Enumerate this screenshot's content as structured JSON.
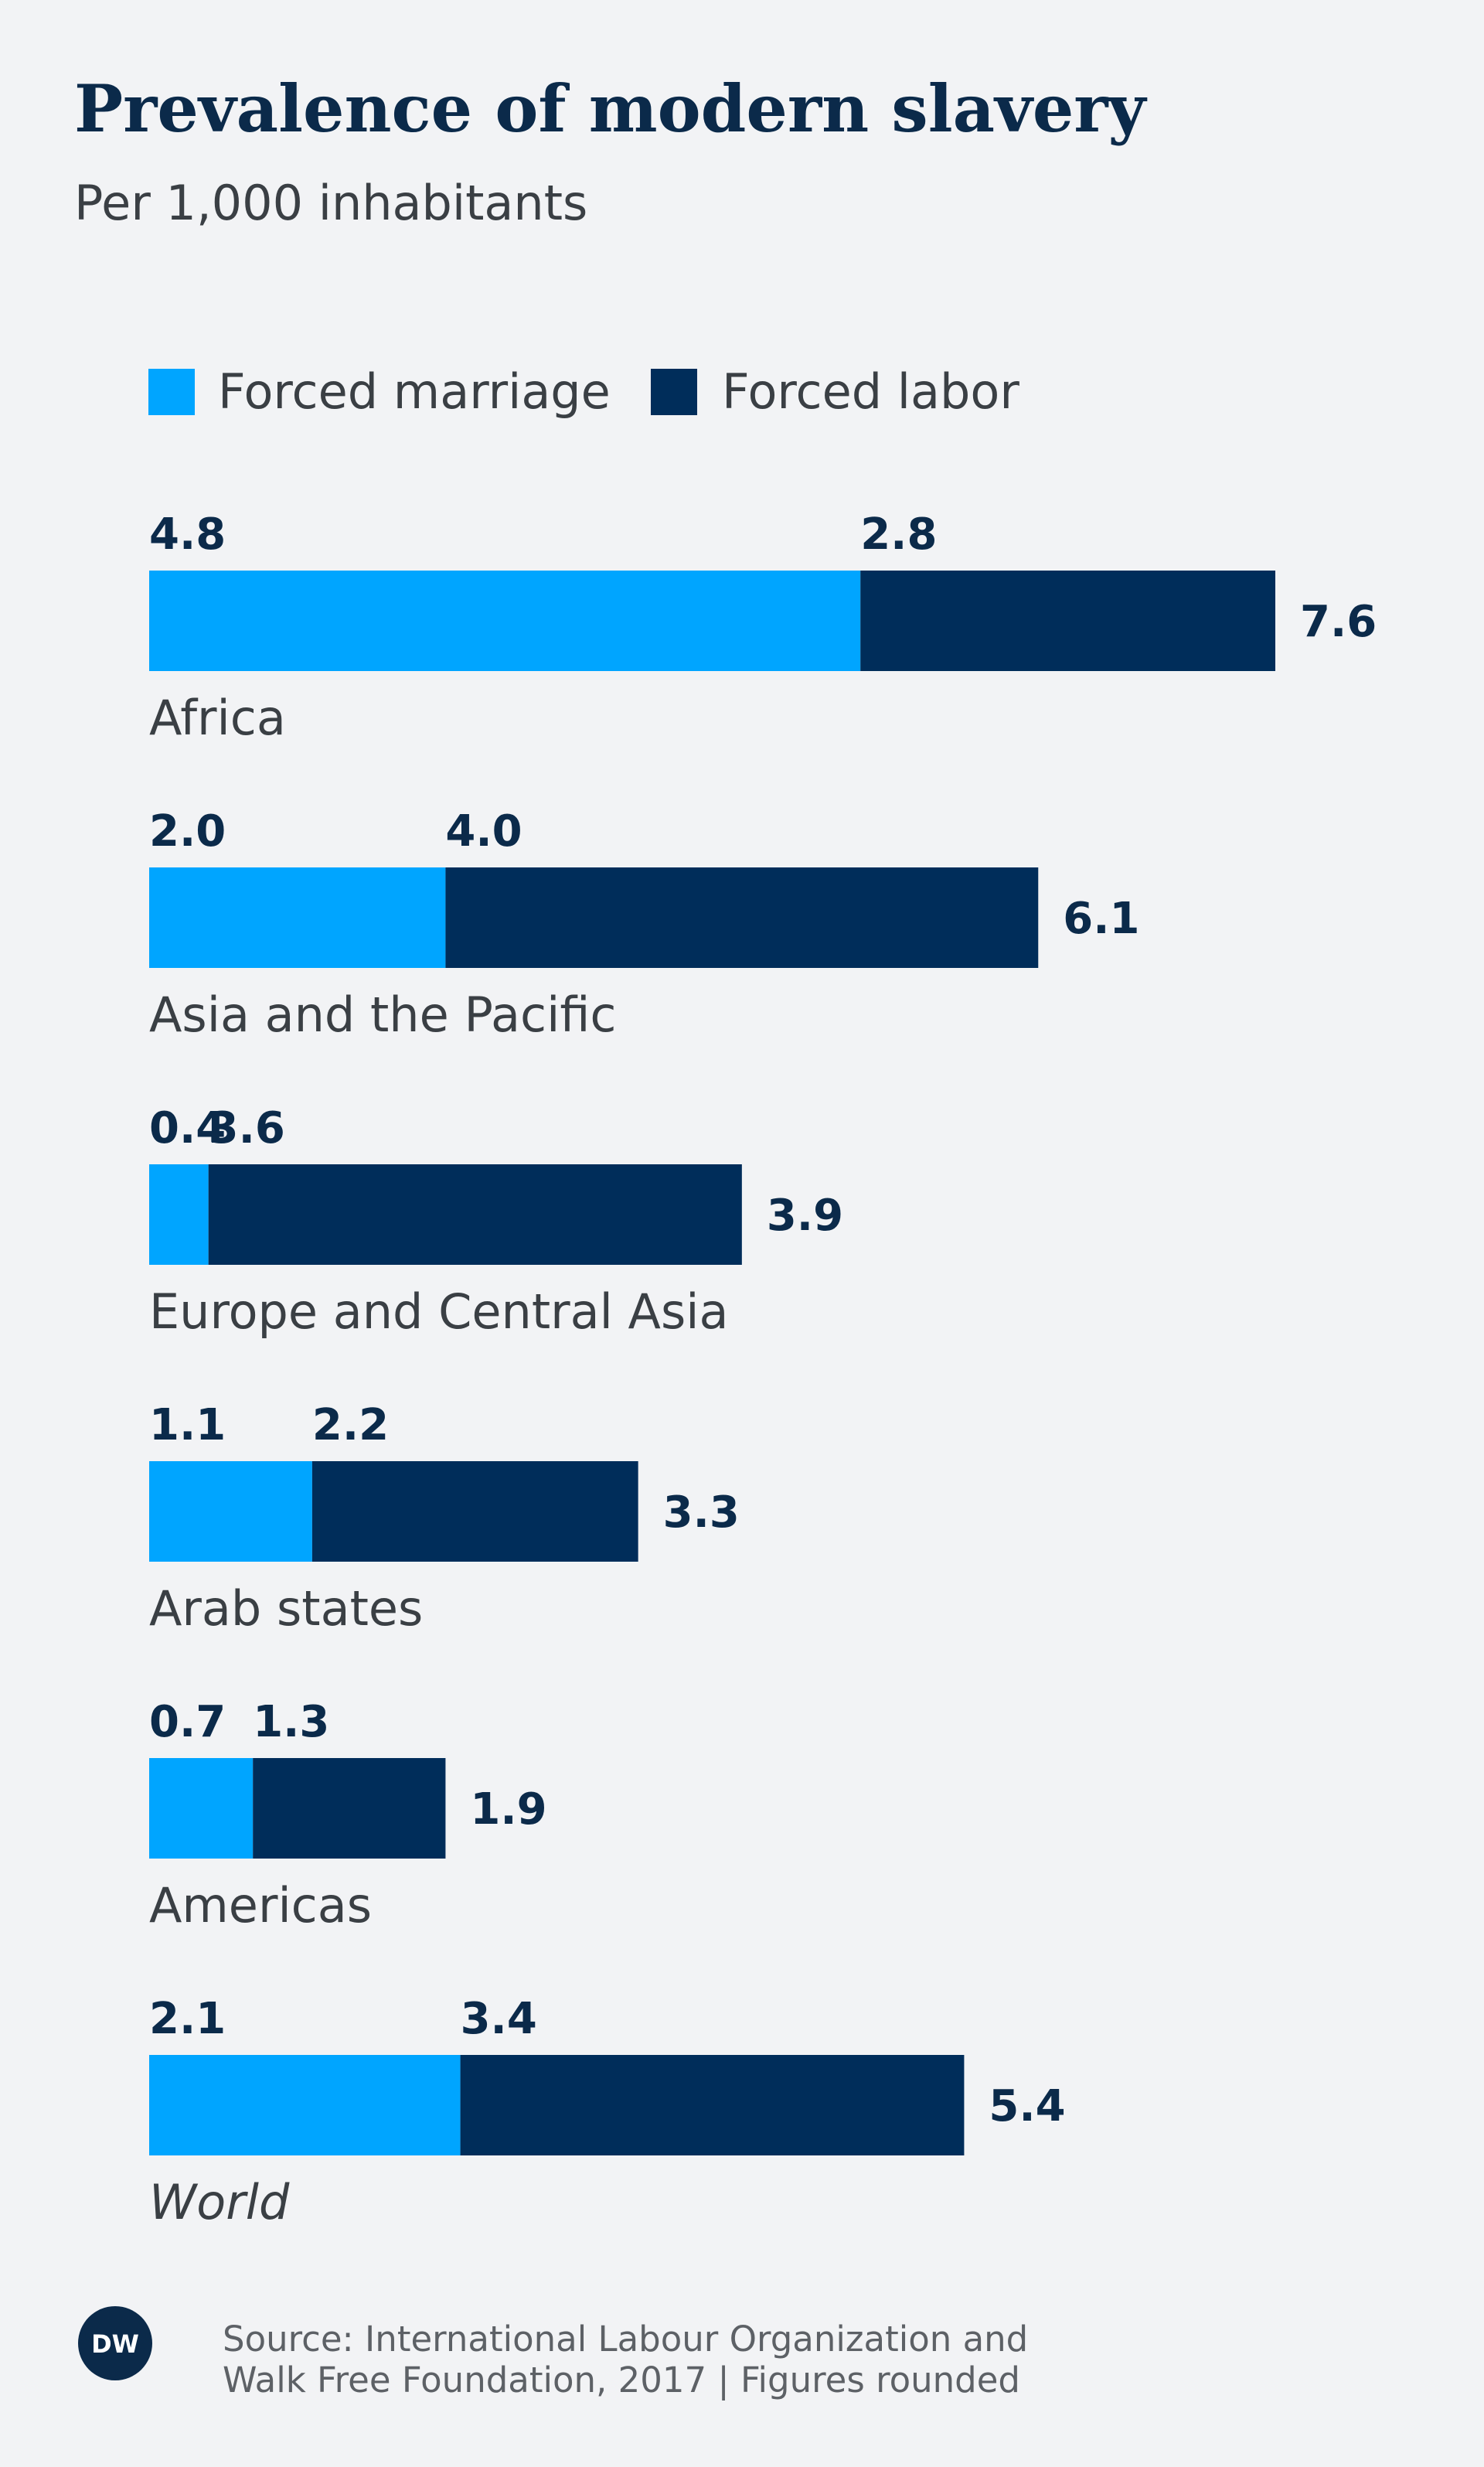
{
  "colors": {
    "forced_marriage": "#00a5ff",
    "forced_labor": "#002d5a",
    "background": "#f2f3f5"
  },
  "chart_data": {
    "type": "bar",
    "orientation": "horizontal",
    "stacked": true,
    "title": "Prevalence of modern slavery",
    "subtitle": "Per 1,000 inhabitants",
    "legend_position": "top-left",
    "grid": false,
    "xlim": [
      0,
      7.6
    ],
    "categories": [
      "Africa",
      "Asia and the Pacific",
      "Europe and Central Asia",
      "Arab states",
      "Americas",
      "World"
    ],
    "series": [
      {
        "name": "Forced marriage",
        "values": [
          "4.8",
          "2.0",
          "0.4",
          "1.1",
          "0.7",
          "2.1"
        ]
      },
      {
        "name": "Forced labor",
        "values": [
          "2.8",
          "4.0",
          "3.6",
          "2.2",
          "1.3",
          "3.4"
        ]
      }
    ],
    "totals": [
      "7.6",
      "6.1",
      "3.9",
      "3.3",
      "1.9",
      "5.4"
    ]
  },
  "source": {
    "line1": "Source:  International Labour Organization and",
    "line2": "Walk Free Foundation, 2017 | Figures rounded"
  },
  "logo": {
    "text": "DW",
    "icon": "dw-logo-icon"
  }
}
